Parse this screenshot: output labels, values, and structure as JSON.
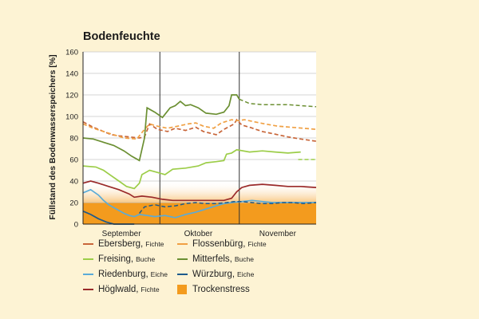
{
  "chart_data": {
    "type": "line",
    "title": "Bodenfeuchte",
    "ylabel": "Füllstand des Bodenwasserspeichers [%]",
    "xlabel": "",
    "ylim": [
      0,
      160
    ],
    "yticks": [
      "0",
      "20",
      "40",
      "60",
      "80",
      "100",
      "120",
      "140",
      "160"
    ],
    "month_labels": [
      {
        "label": "September",
        "center_day": 15
      },
      {
        "label": "Oktober",
        "center_day": 45
      },
      {
        "label": "November",
        "center_day": 76
      }
    ],
    "month_boundaries_day": [
      30,
      61
    ],
    "xlim_days": [
      0,
      91
    ],
    "stress_band": {
      "label": "Trockenstress",
      "from": 0,
      "to": 40,
      "color": "#f39b1e"
    },
    "series": [
      {
        "name": "Ebersberg",
        "sub": "Fichte",
        "color": "#c8663a",
        "dash": true,
        "points": [
          [
            0,
            95
          ],
          [
            4,
            90
          ],
          [
            8,
            86
          ],
          [
            11,
            83
          ],
          [
            14,
            82
          ],
          [
            18,
            81
          ],
          [
            22,
            80
          ],
          [
            24,
            81
          ],
          [
            26,
            93
          ],
          [
            29,
            88
          ],
          [
            33,
            86
          ],
          [
            36,
            89
          ],
          [
            40,
            87
          ],
          [
            44,
            90
          ],
          [
            47,
            86
          ],
          [
            52,
            83
          ],
          [
            55,
            88
          ],
          [
            59,
            93
          ],
          [
            60,
            97
          ],
          [
            62,
            92
          ],
          [
            65,
            90
          ],
          [
            70,
            86
          ],
          [
            76,
            83
          ],
          [
            80,
            81
          ],
          [
            85,
            79
          ],
          [
            91,
            77
          ]
        ]
      },
      {
        "name": "Flossenbürg",
        "sub": "Fichte",
        "color": "#f0a043",
        "dash": true,
        "points": [
          [
            0,
            93
          ],
          [
            4,
            89
          ],
          [
            8,
            86
          ],
          [
            12,
            83
          ],
          [
            16,
            80
          ],
          [
            21,
            79
          ],
          [
            24,
            88
          ],
          [
            26,
            93
          ],
          [
            29,
            91
          ],
          [
            33,
            89
          ],
          [
            37,
            91
          ],
          [
            41,
            93
          ],
          [
            44,
            94
          ],
          [
            47,
            91
          ],
          [
            51,
            89
          ],
          [
            54,
            94
          ],
          [
            58,
            97
          ],
          [
            60,
            96
          ],
          [
            63,
            97
          ],
          [
            67,
            95
          ],
          [
            71,
            93
          ],
          [
            76,
            91
          ],
          [
            81,
            90
          ],
          [
            86,
            89
          ],
          [
            91,
            88
          ]
        ]
      },
      {
        "name": "Freising",
        "sub": "Buche",
        "color": "#9ccd48",
        "dash": false,
        "points": [
          [
            0,
            54
          ],
          [
            5,
            53
          ],
          [
            8,
            50
          ],
          [
            11,
            45
          ],
          [
            14,
            40
          ],
          [
            17,
            35
          ],
          [
            20,
            33
          ],
          [
            22,
            38
          ],
          [
            23,
            46
          ],
          [
            26,
            50
          ],
          [
            29,
            48
          ],
          [
            32,
            46
          ],
          [
            35,
            51
          ],
          [
            40,
            52
          ],
          [
            45,
            54
          ],
          [
            48,
            57
          ],
          [
            52,
            58
          ],
          [
            55,
            59
          ],
          [
            56,
            65
          ],
          [
            58,
            66
          ],
          [
            60,
            69
          ],
          [
            65,
            67
          ],
          [
            70,
            68
          ],
          [
            75,
            67
          ],
          [
            80,
            66
          ],
          [
            85,
            67
          ]
        ],
        "tail": [
          [
            84,
            60
          ],
          [
            91,
            60
          ]
        ]
      },
      {
        "name": "Mitterfels",
        "sub": "Buche",
        "color": "#6b8f32",
        "dash": false,
        "points": [
          [
            0,
            80
          ],
          [
            4,
            79
          ],
          [
            8,
            76
          ],
          [
            12,
            73
          ],
          [
            16,
            68
          ],
          [
            19,
            63
          ],
          [
            22,
            59
          ],
          [
            24,
            80
          ],
          [
            25,
            108
          ],
          [
            28,
            104
          ],
          [
            31,
            99
          ],
          [
            34,
            108
          ],
          [
            36,
            110
          ],
          [
            38,
            114
          ],
          [
            40,
            110
          ],
          [
            42,
            111
          ],
          [
            45,
            108
          ],
          [
            48,
            103
          ],
          [
            52,
            102
          ],
          [
            55,
            104
          ],
          [
            57,
            110
          ],
          [
            58,
            120
          ],
          [
            60,
            120
          ],
          [
            61,
            116
          ]
        ],
        "tail": [
          [
            61,
            116
          ],
          [
            65,
            112
          ],
          [
            70,
            111
          ],
          [
            75,
            111
          ],
          [
            80,
            111
          ],
          [
            85,
            110
          ],
          [
            91,
            109
          ]
        ]
      },
      {
        "name": "Riedenburg",
        "sub": "Eiche",
        "color": "#5aabd8",
        "dash": false,
        "points": [
          [
            0,
            29
          ],
          [
            3,
            32
          ],
          [
            6,
            27
          ],
          [
            8,
            22
          ],
          [
            10,
            18
          ],
          [
            13,
            14
          ],
          [
            16,
            10
          ],
          [
            18,
            8
          ],
          [
            20,
            7
          ],
          [
            22,
            9
          ],
          [
            25,
            8
          ],
          [
            28,
            7
          ],
          [
            32,
            8
          ],
          [
            36,
            6
          ],
          [
            40,
            9
          ],
          [
            44,
            11
          ],
          [
            48,
            14
          ],
          [
            52,
            17
          ],
          [
            55,
            19
          ],
          [
            58,
            20
          ],
          [
            62,
            21
          ],
          [
            66,
            22
          ],
          [
            70,
            21
          ],
          [
            74,
            20
          ],
          [
            78,
            20
          ],
          [
            82,
            20
          ],
          [
            86,
            20
          ],
          [
            91,
            20
          ]
        ]
      },
      {
        "name": "Würzburg",
        "sub": "Eiche",
        "color": "#1d5a8c",
        "dash": false,
        "points": [
          [
            0,
            12
          ],
          [
            3,
            9
          ],
          [
            6,
            5
          ],
          [
            9,
            2
          ],
          [
            12,
            0
          ],
          [
            15,
            0
          ],
          [
            18,
            0
          ],
          [
            20,
            0
          ],
          [
            22,
            10
          ],
          [
            24,
            16
          ],
          [
            28,
            18
          ],
          [
            32,
            16
          ],
          [
            36,
            17
          ],
          [
            40,
            19
          ],
          [
            44,
            20
          ],
          [
            48,
            19
          ],
          [
            52,
            19
          ],
          [
            56,
            20
          ],
          [
            59,
            21
          ],
          [
            62,
            21
          ],
          [
            66,
            20
          ],
          [
            70,
            19
          ],
          [
            74,
            19
          ],
          [
            78,
            20
          ],
          [
            82,
            20
          ],
          [
            86,
            19
          ],
          [
            91,
            20
          ]
        ],
        "dashed_from": 21
      },
      {
        "name": "Höglwald",
        "sub": "Fichte",
        "color": "#9a2a2a",
        "dash": false,
        "points": [
          [
            0,
            38
          ],
          [
            3,
            40
          ],
          [
            6,
            38
          ],
          [
            10,
            35
          ],
          [
            14,
            32
          ],
          [
            18,
            28
          ],
          [
            20,
            25
          ],
          [
            23,
            26
          ],
          [
            27,
            25
          ],
          [
            31,
            23
          ],
          [
            35,
            22
          ],
          [
            40,
            22
          ],
          [
            45,
            22
          ],
          [
            50,
            22
          ],
          [
            55,
            22
          ],
          [
            58,
            24
          ],
          [
            60,
            30
          ],
          [
            62,
            34
          ],
          [
            65,
            36
          ],
          [
            70,
            37
          ],
          [
            75,
            36
          ],
          [
            80,
            35
          ],
          [
            85,
            35
          ],
          [
            91,
            34
          ]
        ]
      }
    ]
  },
  "legend": {
    "items": [
      {
        "name": "Ebersberg",
        "sub": "Fichte",
        "color": "#c8663a",
        "kind": "line"
      },
      {
        "name": "Flossenbürg",
        "sub": "Fichte",
        "color": "#f0a043",
        "kind": "line"
      },
      {
        "name": "Freising",
        "sub": "Buche",
        "color": "#9ccd48",
        "kind": "line"
      },
      {
        "name": "Mitterfels",
        "sub": "Buche",
        "color": "#6b8f32",
        "kind": "line"
      },
      {
        "name": "Riedenburg",
        "sub": "Eiche",
        "color": "#5aabd8",
        "kind": "line"
      },
      {
        "name": "Würzburg",
        "sub": "Eiche",
        "color": "#1d5a8c",
        "kind": "line"
      },
      {
        "name": "Höglwald",
        "sub": "Fichte",
        "color": "#9a2a2a",
        "kind": "line"
      },
      {
        "name": "Trockenstress",
        "sub": "",
        "color": "#f39b1e",
        "kind": "box"
      }
    ]
  }
}
